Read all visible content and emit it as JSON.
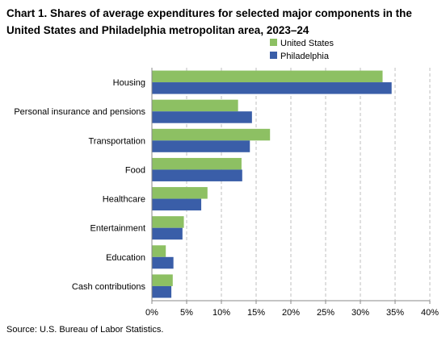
{
  "chart_data": {
    "type": "bar",
    "orientation": "horizontal",
    "title": "Chart 1. Shares of average expenditures for selected major components in the United States and Philadelphia metropolitan area, 2023–24",
    "categories": [
      "Housing",
      "Personal insurance and pensions",
      "Transportation",
      "Food",
      "Healthcare",
      "Entertainment",
      "Education",
      "Cash contributions"
    ],
    "series": [
      {
        "name": "United States",
        "color": "#8dc063",
        "values": [
          33.2,
          12.4,
          17.0,
          12.9,
          8.0,
          4.6,
          2.0,
          3.0
        ]
      },
      {
        "name": "Philadelphia",
        "color": "#3a5ea8",
        "values": [
          34.5,
          14.4,
          14.1,
          13.0,
          7.1,
          4.4,
          3.1,
          2.8
        ]
      }
    ],
    "xlim": [
      0,
      40
    ],
    "ticks": [
      0,
      5,
      10,
      15,
      20,
      25,
      30,
      35,
      40
    ],
    "tick_labels": [
      "0%",
      "5%",
      "10%",
      "15%",
      "20%",
      "25%",
      "30%",
      "35%",
      "40%"
    ],
    "grid": "vertical dashed",
    "legend_position": "top-left",
    "source": "Source: U.S. Bureau of Labor Statistics."
  }
}
